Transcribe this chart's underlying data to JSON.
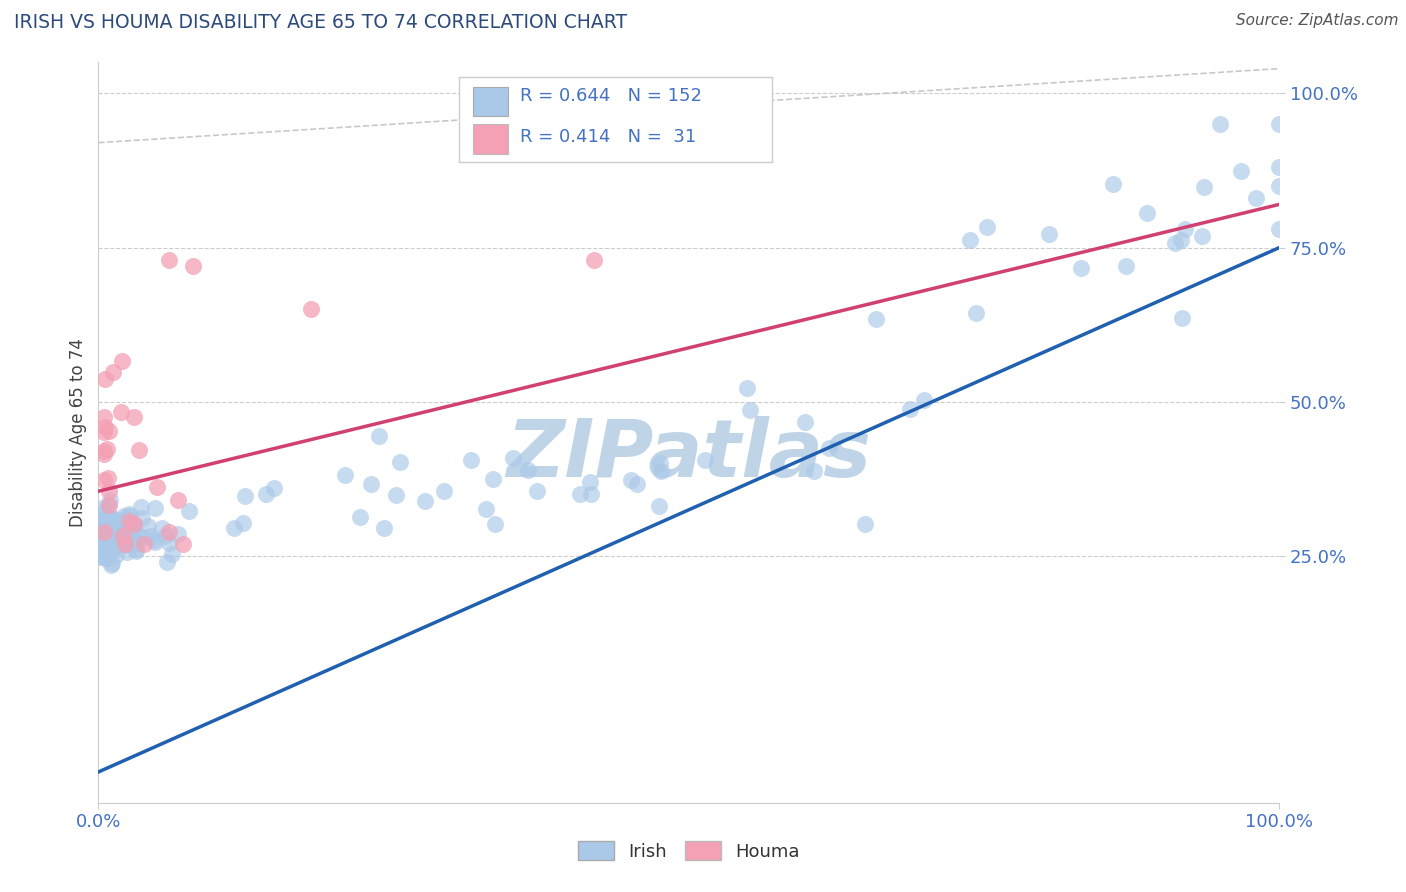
{
  "title": "IRISH VS HOUMA DISABILITY AGE 65 TO 74 CORRELATION CHART",
  "source": "Source: ZipAtlas.com",
  "ylabel": "Disability Age 65 to 74",
  "irish_R": 0.644,
  "irish_N": 152,
  "houma_R": 0.414,
  "houma_N": 31,
  "irish_color": "#aac8e8",
  "houma_color": "#f4a0b5",
  "irish_line_color": "#2060b0",
  "houma_line_color": "#d04070",
  "houma_dash_color": "#e08090",
  "ref_line_color": "#c8c8c8",
  "title_color": "#2c4a7c",
  "source_color": "#555555",
  "axis_label_color": "#444444",
  "tick_color": "#4472c4",
  "grid_color": "#cccccc",
  "watermark_color": "#c0d4e8",
  "x_min": 0.0,
  "x_max": 1.0,
  "y_min": -0.15,
  "y_max": 1.05,
  "y_ticks": [
    0.25,
    0.5,
    0.75,
    1.0
  ],
  "y_tick_labels": [
    "25.0%",
    "50.0%",
    "75.0%",
    "100.0%"
  ],
  "x_ticks": [
    0.0,
    1.0
  ],
  "x_tick_labels": [
    "0.0%",
    "100.0%"
  ],
  "irish_line_y0": -0.1,
  "irish_line_y1": 0.75,
  "houma_line_x0": 0.0,
  "houma_line_y0": 0.355,
  "houma_line_x1": 1.0,
  "houma_line_y1": 0.82,
  "ref_line_x": [
    0.0,
    1.0
  ],
  "ref_line_y": [
    0.92,
    1.04
  ]
}
